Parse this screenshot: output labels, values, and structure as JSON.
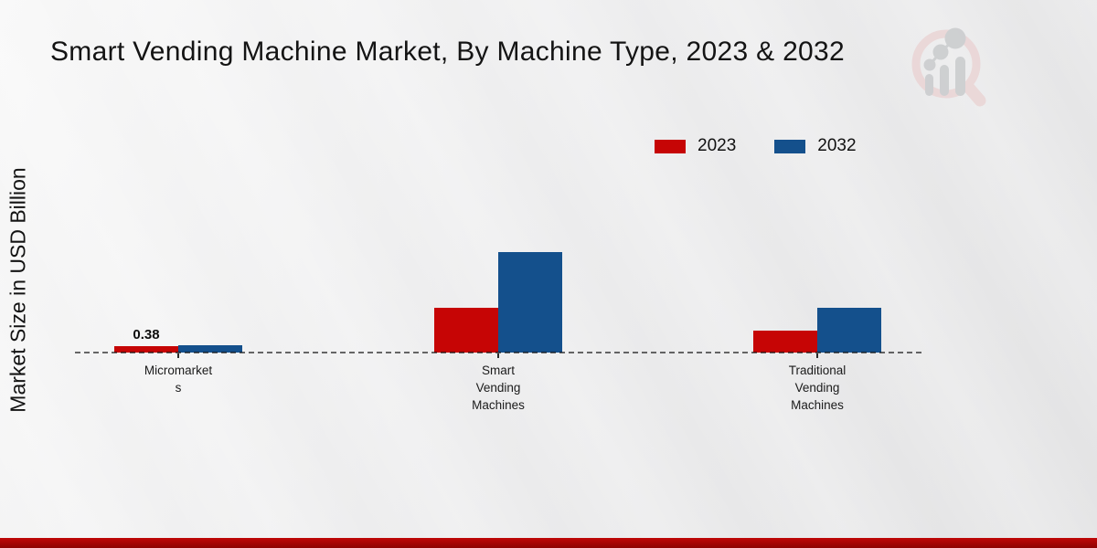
{
  "page": {
    "title": "Smart Vending Machine Market, By Machine Type, 2023 & 2032"
  },
  "chart_data": {
    "type": "bar",
    "title": "Smart Vending Machine Market, By Machine Type, 2023 & 2032",
    "xlabel": "",
    "ylabel": "Market Size in USD Billion",
    "categories": [
      "Micromarkets",
      "Smart Vending Machines",
      "Traditional Vending Machines"
    ],
    "tick_label_lines": [
      [
        "Micromarket",
        "s"
      ],
      [
        "Smart",
        "Vending",
        "Machines"
      ],
      [
        "Traditional",
        "Vending",
        "Machines"
      ]
    ],
    "series": [
      {
        "name": "2023",
        "color": "#c60505",
        "values": [
          0.38,
          2.65,
          1.3
        ],
        "bar_labels": [
          "0.38",
          null,
          null
        ]
      },
      {
        "name": "2032",
        "color": "#14508c",
        "values": [
          0.46,
          6.0,
          2.65
        ],
        "bar_labels": [
          null,
          null,
          null
        ]
      }
    ],
    "ylim": [
      0,
      7
    ],
    "baseline": "dashed zero line",
    "y_axis_ticks": "hidden",
    "legend_position": "top-right",
    "annotations": [
      "0.38"
    ]
  },
  "legend": {
    "items": [
      {
        "label": "2023",
        "color": "#c60505"
      },
      {
        "label": "2032",
        "color": "#14508c"
      }
    ]
  },
  "branding": {
    "logo_icon": "magnifier-bar-chart-watermark",
    "footer_color": "#b30404"
  }
}
